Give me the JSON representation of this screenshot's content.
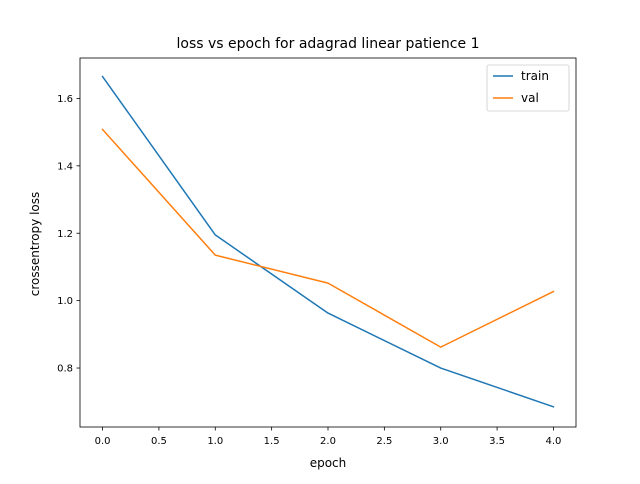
{
  "chart_data": {
    "type": "line",
    "title": "loss vs epoch for adagrad linear patience 1",
    "xlabel": "epoch",
    "ylabel": "crossentropy loss",
    "x": [
      0,
      1,
      2,
      3,
      4
    ],
    "xlim": [
      -0.2,
      4.2
    ],
    "ylim": [
      0.625,
      1.72
    ],
    "xticks": [
      0.0,
      0.5,
      1.0,
      1.5,
      2.0,
      2.5,
      3.0,
      3.5,
      4.0
    ],
    "xtick_labels": [
      "0.0",
      "0.5",
      "1.0",
      "1.5",
      "2.0",
      "2.5",
      "3.0",
      "3.5",
      "4.0"
    ],
    "yticks": [
      0.8,
      1.0,
      1.2,
      1.4,
      1.6
    ],
    "ytick_labels": [
      "0.8",
      "1.0",
      "1.2",
      "1.4",
      "1.6"
    ],
    "grid": false,
    "legend_position": "top-right",
    "series": [
      {
        "name": "train",
        "color": "#1f77b4",
        "values": [
          1.665,
          1.195,
          0.963,
          0.8,
          0.685
        ]
      },
      {
        "name": "val",
        "color": "#ff7f0e",
        "values": [
          1.508,
          1.135,
          1.052,
          0.862,
          1.027
        ]
      }
    ]
  }
}
